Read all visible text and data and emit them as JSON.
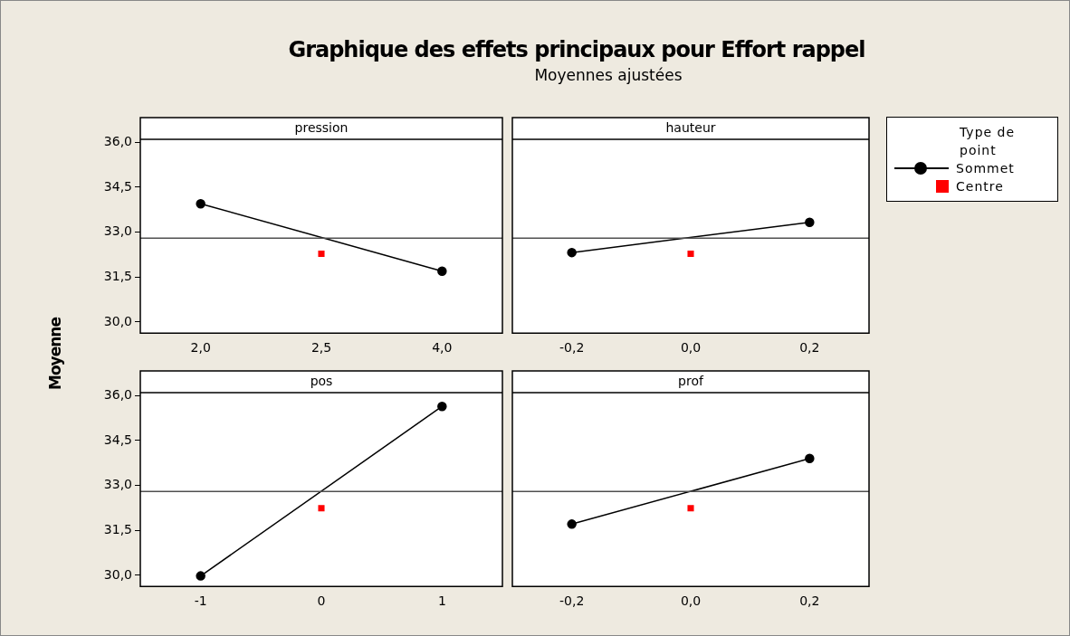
{
  "chart_data": [
    {
      "type": "other",
      "title": "Graphique des effets principaux pour Effort rappel",
      "subtitle": "Moyennes ajustées"
    },
    {
      "type": "line",
      "title": "pression",
      "ylabel": "Moyenne",
      "legend": "right",
      "legend_title": "Type de point",
      "categories": [
        "2,0",
        "2,5",
        "4,0"
      ],
      "ylim": [
        29.63,
        36.1
      ],
      "yticks": [
        {
          "value": 30,
          "label": "30,0"
        },
        {
          "value": 31.5,
          "label": "31,5"
        },
        {
          "value": 33,
          "label": "33,0"
        },
        {
          "value": 34.5,
          "label": "34,5"
        },
        {
          "value": 36,
          "label": "36,0"
        }
      ],
      "series": [
        {
          "name": "Sommet",
          "type": "line",
          "marker": "circle",
          "color": "#000000",
          "values": [
            33.95,
            null,
            31.7
          ]
        },
        {
          "name": "Centre",
          "type": "scatter",
          "marker": "square",
          "color": "#ff0000",
          "values": [
            null,
            32.28,
            null
          ]
        }
      ],
      "ref_lines": [
        {
          "axis": "y",
          "value": 32.8,
          "color": "#505050"
        }
      ]
    },
    {
      "type": "line",
      "title": "hauteur",
      "tick_labels": "x",
      "categories": [
        "-0,2",
        "0,0",
        "0,2"
      ],
      "ylim": [
        29.63,
        36.1
      ],
      "series": [
        {
          "type": "line",
          "marker": "circle",
          "color": "#000000",
          "values": [
            32.32,
            null,
            33.33
          ]
        },
        {
          "type": "scatter",
          "marker": "square",
          "color": "#ff0000",
          "values": [
            null,
            32.28,
            null
          ]
        }
      ],
      "ref_lines": [
        {
          "axis": "y",
          "value": 32.8,
          "color": "#505050"
        }
      ]
    },
    {
      "type": "line",
      "title": "pos",
      "categories": [
        "-1",
        "0",
        "1"
      ],
      "ylim": [
        29.63,
        36.1
      ],
      "yticks": [
        {
          "value": 30,
          "label": "30,0"
        },
        {
          "value": 31.5,
          "label": "31,5"
        },
        {
          "value": 33,
          "label": "33,0"
        },
        {
          "value": 34.5,
          "label": "34,5"
        },
        {
          "value": 36,
          "label": "36,0"
        }
      ],
      "series": [
        {
          "type": "line",
          "marker": "circle",
          "color": "#000000",
          "values": [
            29.98,
            null,
            35.64
          ]
        },
        {
          "type": "scatter",
          "marker": "square",
          "color": "#ff0000",
          "values": [
            null,
            32.24,
            null
          ]
        }
      ],
      "ref_lines": [
        {
          "axis": "y",
          "value": 32.8,
          "color": "#505050"
        }
      ]
    },
    {
      "type": "line",
      "title": "prof",
      "tick_labels": "x",
      "categories": [
        "-0,2",
        "0,0",
        "0,2"
      ],
      "ylim": [
        29.63,
        36.1
      ],
      "series": [
        {
          "type": "line",
          "marker": "circle",
          "color": "#000000",
          "values": [
            31.71,
            null,
            33.9
          ]
        },
        {
          "type": "scatter",
          "marker": "square",
          "color": "#ff0000",
          "values": [
            null,
            32.24,
            null
          ]
        }
      ],
      "ref_lines": [
        {
          "axis": "y",
          "value": 32.8,
          "color": "#505050"
        }
      ]
    }
  ]
}
